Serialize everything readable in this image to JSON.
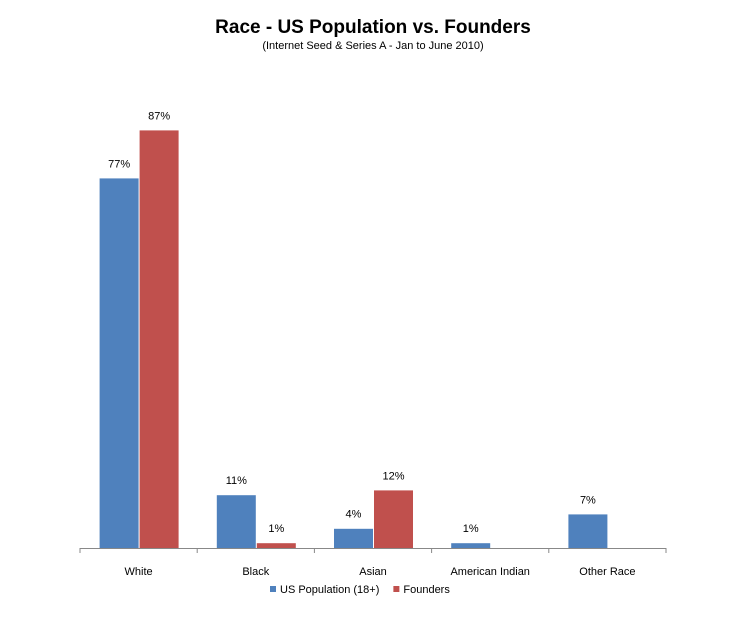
{
  "chart_data": {
    "type": "bar",
    "title": "Race - US Population vs. Founders",
    "subtitle": "(Internet Seed & Series A - Jan to June 2010)",
    "categories": [
      "White",
      "Black",
      "Asian",
      "American Indian",
      "Other Race"
    ],
    "series": [
      {
        "name": "US Population (18+)",
        "color": "#4f81bd",
        "values": [
          77,
          11,
          4,
          1,
          7
        ],
        "value_labels": [
          "77%",
          "11%",
          "4%",
          "1%",
          "7%"
        ]
      },
      {
        "name": "Founders",
        "color": "#c0504d",
        "values": [
          87,
          1,
          12,
          null,
          null
        ],
        "value_labels": [
          "87%",
          "1%",
          "12%",
          null,
          null
        ]
      }
    ],
    "legend": "bottom"
  }
}
